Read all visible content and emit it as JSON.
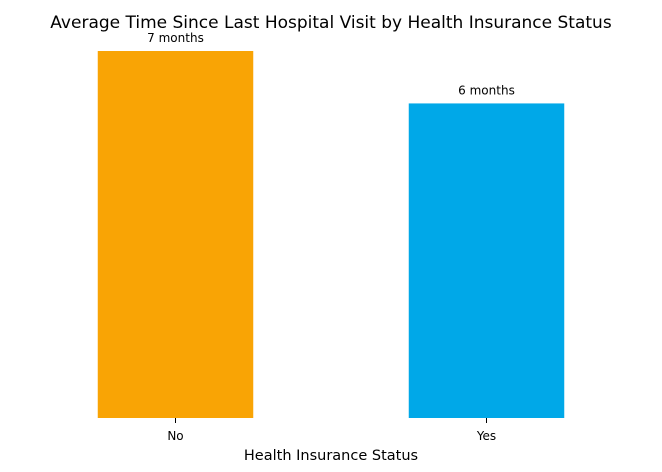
{
  "chart_data": {
    "type": "bar",
    "title": "Average Time Since Last Hospital Visit by Health Insurance Status",
    "xlabel": "Health Insurance Status",
    "ylabel": "",
    "categories": [
      "No",
      "Yes"
    ],
    "values": [
      7,
      6
    ],
    "data_labels": [
      "7 months",
      "6 months"
    ],
    "colors": [
      "#F9A405",
      "#00A8E8"
    ],
    "ylim": [
      0,
      7
    ],
    "grid": false,
    "legend": "none"
  }
}
